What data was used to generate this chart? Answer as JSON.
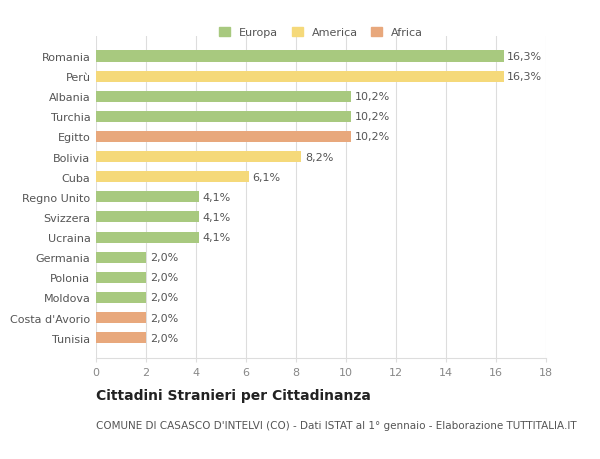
{
  "countries": [
    "Romania",
    "Perù",
    "Albania",
    "Turchia",
    "Egitto",
    "Bolivia",
    "Cuba",
    "Regno Unito",
    "Svizzera",
    "Ucraina",
    "Germania",
    "Polonia",
    "Moldova",
    "Costa d'Avorio",
    "Tunisia"
  ],
  "values": [
    16.3,
    16.3,
    10.2,
    10.2,
    10.2,
    8.2,
    6.1,
    4.1,
    4.1,
    4.1,
    2.0,
    2.0,
    2.0,
    2.0,
    2.0
  ],
  "labels": [
    "16,3%",
    "16,3%",
    "10,2%",
    "10,2%",
    "10,2%",
    "8,2%",
    "6,1%",
    "4,1%",
    "4,1%",
    "4,1%",
    "2,0%",
    "2,0%",
    "2,0%",
    "2,0%",
    "2,0%"
  ],
  "continents": [
    "Europa",
    "America",
    "Europa",
    "Europa",
    "Africa",
    "America",
    "America",
    "Europa",
    "Europa",
    "Europa",
    "Europa",
    "Europa",
    "Europa",
    "Africa",
    "Africa"
  ],
  "colors": {
    "Europa": "#a8c97f",
    "America": "#f5d97a",
    "Africa": "#e8a87c"
  },
  "xlim": [
    0,
    18
  ],
  "xticks": [
    0,
    2,
    4,
    6,
    8,
    10,
    12,
    14,
    16,
    18
  ],
  "title": "Cittadini Stranieri per Cittadinanza",
  "subtitle": "COMUNE DI CASASCO D'INTELVI (CO) - Dati ISTAT al 1° gennaio - Elaborazione TUTTITALIA.IT",
  "background_color": "#ffffff",
  "grid_color": "#dddddd",
  "bar_height": 0.55,
  "label_fontsize": 8,
  "ytick_fontsize": 8,
  "xtick_fontsize": 8,
  "title_fontsize": 10,
  "subtitle_fontsize": 7.5
}
